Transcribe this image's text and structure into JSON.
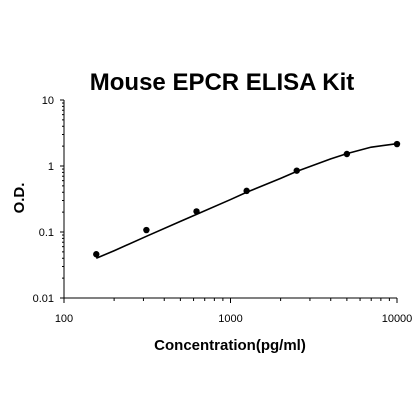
{
  "chart_data": {
    "type": "scatter",
    "title": "Mouse EPCR ELISA Kit",
    "xlabel": "Concentration(pg/ml)",
    "ylabel": "O.D.",
    "x_scale": "log",
    "y_scale": "log",
    "xlim": [
      100,
      10000
    ],
    "ylim": [
      0.01,
      10
    ],
    "x_ticks": [
      "100",
      "1000",
      "10000"
    ],
    "y_ticks": [
      "0.01",
      "0.1",
      "1",
      "10"
    ],
    "grid": false,
    "legend": "none",
    "series": [
      {
        "points": [
          {
            "x": 156.25,
            "y": 0.046
          },
          {
            "x": 312.5,
            "y": 0.107
          },
          {
            "x": 625,
            "y": 0.205
          },
          {
            "x": 1250,
            "y": 0.42
          },
          {
            "x": 2500,
            "y": 0.85
          },
          {
            "x": 5000,
            "y": 1.52
          },
          {
            "x": 10000,
            "y": 2.15
          }
        ],
        "fit_curve": [
          {
            "x": 156.25,
            "y": 0.04
          },
          {
            "x": 200,
            "y": 0.052
          },
          {
            "x": 312.5,
            "y": 0.086
          },
          {
            "x": 500,
            "y": 0.145
          },
          {
            "x": 625,
            "y": 0.185
          },
          {
            "x": 1000,
            "y": 0.31
          },
          {
            "x": 1250,
            "y": 0.4
          },
          {
            "x": 2000,
            "y": 0.65
          },
          {
            "x": 2500,
            "y": 0.83
          },
          {
            "x": 4000,
            "y": 1.28
          },
          {
            "x": 5000,
            "y": 1.54
          },
          {
            "x": 7000,
            "y": 1.93
          },
          {
            "x": 10000,
            "y": 2.18
          }
        ]
      }
    ],
    "colors": {
      "marker": "#000000",
      "line": "#000000",
      "axis": "#000000"
    }
  }
}
